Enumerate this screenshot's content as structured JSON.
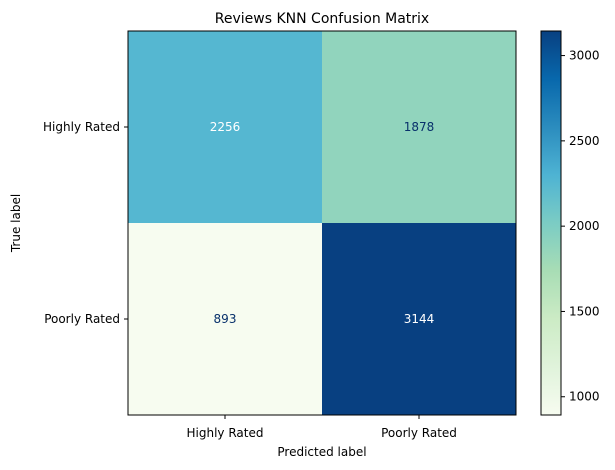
{
  "chart_data": {
    "type": "heatmap",
    "title": "Reviews KNN Confusion Matrix",
    "xlabel": "Predicted label",
    "ylabel": "True label",
    "x_categories": [
      "Highly Rated",
      "Poorly Rated"
    ],
    "y_categories": [
      "Highly Rated",
      "Poorly Rated"
    ],
    "values": [
      [
        2256,
        1878
      ],
      [
        893,
        3144
      ]
    ],
    "colormap": "GnBu",
    "color_range": [
      893,
      3144
    ],
    "colorbar_ticks": [
      1000,
      1500,
      2000,
      2500,
      3000
    ],
    "grid": false,
    "colors": {
      "text_light": "#ffffff",
      "text_dark": "#08306b"
    }
  }
}
